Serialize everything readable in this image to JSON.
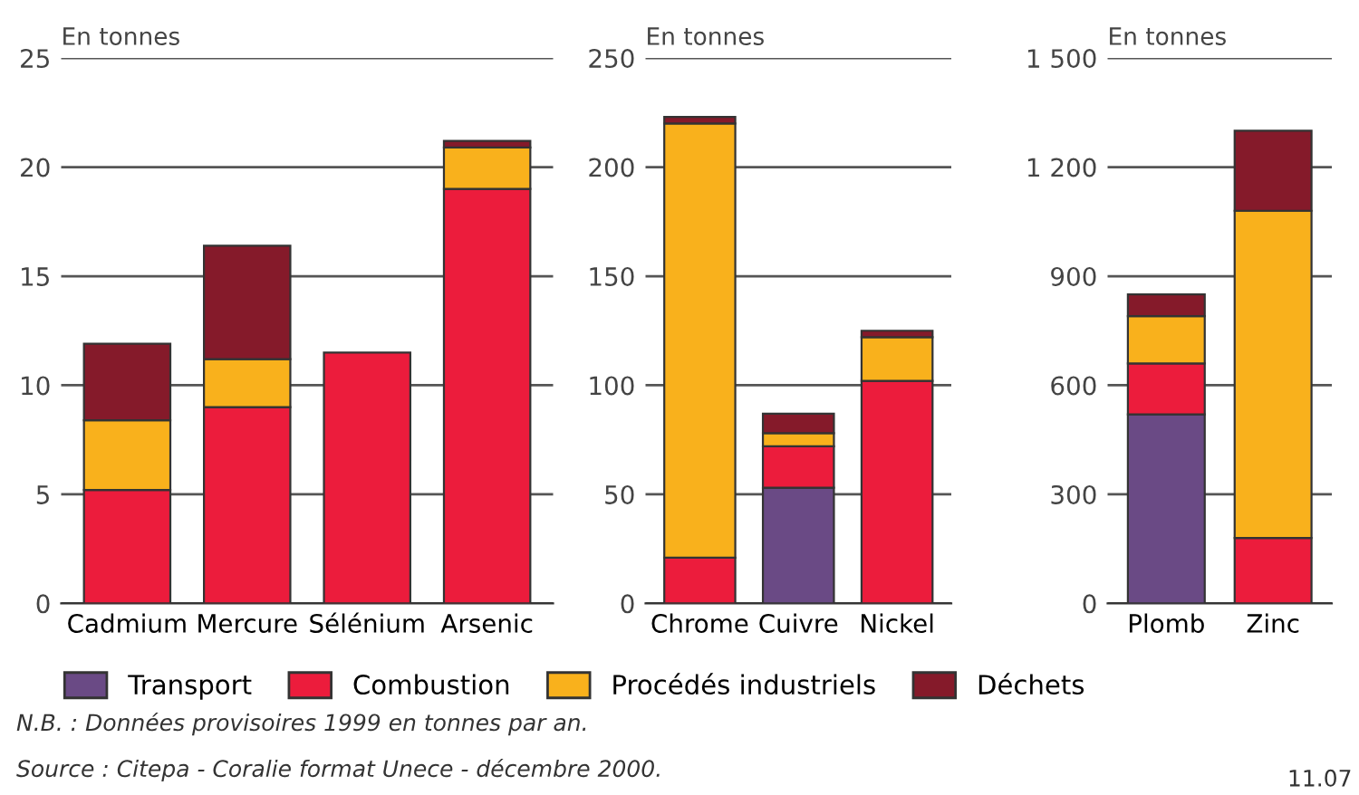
{
  "chart_data": [
    {
      "type": "bar",
      "stacked": true,
      "ylabel": "En tonnes",
      "categories": [
        "Cadmium",
        "Mercure",
        "Sélénium",
        "Arsenic"
      ],
      "ylim": [
        0,
        25
      ],
      "yticks": [
        0,
        5,
        10,
        15,
        20,
        25
      ],
      "grid": "y",
      "legend": "bottom",
      "series": [
        {
          "name": "Transport",
          "color": "#6a4a85",
          "values": [
            0,
            0,
            0,
            0
          ]
        },
        {
          "name": "Combustion",
          "color": "#ec1c3c",
          "values": [
            5.2,
            9.0,
            11.5,
            19.0
          ]
        },
        {
          "name": "Procédés industriels",
          "color": "#f9b11c",
          "values": [
            3.2,
            2.2,
            0,
            1.9
          ]
        },
        {
          "name": "Déchets",
          "color": "#851a2a",
          "values": [
            3.5,
            5.2,
            0,
            0.3
          ]
        }
      ],
      "annotations": [
        "N.B. : Données provisoires 1999 en tonnes par an.",
        "Source : Citepa - Coralie format Unece - décembre 2000."
      ]
    },
    {
      "type": "bar",
      "stacked": true,
      "ylabel": "En tonnes",
      "categories": [
        "Chrome",
        "Cuivre",
        "Nickel"
      ],
      "ylim": [
        0,
        250
      ],
      "yticks": [
        0,
        50,
        100,
        150,
        200,
        250
      ],
      "grid": "y",
      "series": [
        {
          "color": "#6a4a85",
          "values": [
            0,
            53,
            0
          ]
        },
        {
          "color": "#ec1c3c",
          "values": [
            21,
            19,
            102
          ]
        },
        {
          "color": "#f9b11c",
          "values": [
            199,
            6,
            20
          ]
        },
        {
          "color": "#851a2a",
          "values": [
            3,
            9,
            3
          ]
        }
      ]
    },
    {
      "type": "bar",
      "stacked": true,
      "ylabel": "En tonnes",
      "categories": [
        "Plomb",
        "Zinc"
      ],
      "ylim": [
        0,
        1500
      ],
      "yticks": [
        0,
        300,
        600,
        900,
        {
          "value": 1200,
          "label": "1 200"
        },
        {
          "value": 1500,
          "label": "1 500"
        }
      ],
      "grid": "y",
      "series": [
        {
          "color": "#6a4a85",
          "values": [
            520,
            0
          ]
        },
        {
          "color": "#ec1c3c",
          "values": [
            140,
            180
          ]
        },
        {
          "color": "#f9b11c",
          "values": [
            130,
            900
          ]
        },
        {
          "color": "#851a2a",
          "values": [
            60,
            220
          ]
        }
      ],
      "annotations": [
        "11.07"
      ]
    }
  ]
}
